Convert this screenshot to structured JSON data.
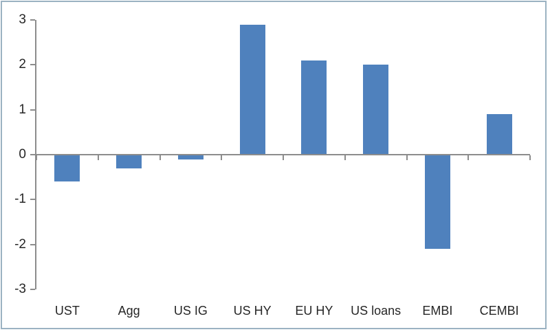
{
  "chart_data": {
    "type": "bar",
    "title": "",
    "xlabel": "",
    "ylabel": "",
    "categories": [
      "UST",
      "Agg",
      "US IG",
      "US HY",
      "EU HY",
      "US loans",
      "EMBI",
      "CEMBI"
    ],
    "values": [
      -0.6,
      -0.3,
      -0.1,
      2.9,
      2.1,
      2.0,
      -2.1,
      0.9
    ],
    "ylim": [
      -3,
      3
    ],
    "yticks": [
      3,
      2,
      1,
      0,
      -1,
      -2,
      -3
    ],
    "grid": false,
    "legend_position": "none",
    "bar_color": "#4f81bd",
    "axis_color": "#8c8c8c",
    "text_color": "#262626",
    "frame_color": "#9bb2c2",
    "background_color": "#ffffff"
  }
}
